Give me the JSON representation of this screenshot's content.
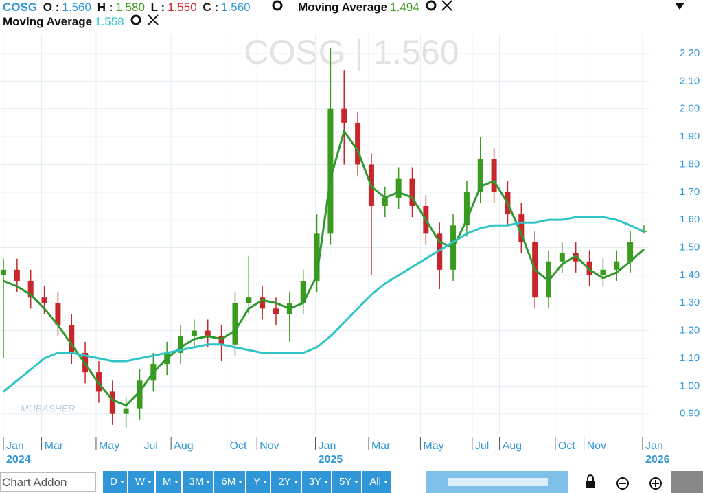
{
  "header": {
    "symbol": "COSG",
    "o_label": "O :",
    "open": "1.560",
    "h_label": "H :",
    "high": "1.580",
    "l_label": "L :",
    "low": "1.550",
    "c_label": "C :",
    "close": "1.560",
    "indicators": [
      {
        "name": "Moving Average",
        "value": "1.494"
      },
      {
        "name": "Moving Average",
        "value": "1.558"
      }
    ]
  },
  "watermark": "COSG | 1.560",
  "logo": "MUBASHER",
  "chart_data": {
    "type": "candlestick",
    "open": [
      1.4,
      1.42,
      1.38,
      1.32,
      1.3,
      1.22,
      1.12,
      1.05,
      0.98,
      0.9,
      0.92,
      1.02,
      1.08,
      1.12,
      1.18,
      1.2,
      1.18,
      1.15,
      1.3,
      1.32,
      1.28,
      1.26,
      1.3,
      1.38,
      1.55,
      2.0,
      1.95,
      1.8,
      1.65,
      1.68,
      1.75,
      1.65,
      1.55,
      1.42,
      1.58,
      1.7,
      1.82,
      1.7,
      1.62,
      1.52,
      1.32,
      1.45,
      1.48,
      1.45,
      1.4,
      1.42,
      1.45,
      1.56
    ],
    "high": [
      1.46,
      1.46,
      1.42,
      1.36,
      1.34,
      1.26,
      1.16,
      1.09,
      1.02,
      0.96,
      1.06,
      1.12,
      1.16,
      1.22,
      1.24,
      1.24,
      1.22,
      1.34,
      1.47,
      1.36,
      1.32,
      1.34,
      1.42,
      1.62,
      2.22,
      2.14,
      1.99,
      1.84,
      1.72,
      1.79,
      1.79,
      1.69,
      1.59,
      1.62,
      1.74,
      1.9,
      1.86,
      1.74,
      1.66,
      1.56,
      1.49,
      1.52,
      1.52,
      1.49,
      1.46,
      1.49,
      1.56,
      1.58
    ],
    "low": [
      1.1,
      1.34,
      1.28,
      1.26,
      1.18,
      1.08,
      1.01,
      0.94,
      0.86,
      0.85,
      0.88,
      0.98,
      1.04,
      1.08,
      1.14,
      1.14,
      1.09,
      1.11,
      1.26,
      1.24,
      1.22,
      1.16,
      1.26,
      1.34,
      1.51,
      1.8,
      1.76,
      1.4,
      1.61,
      1.64,
      1.61,
      1.51,
      1.35,
      1.38,
      1.54,
      1.66,
      1.66,
      1.58,
      1.48,
      1.28,
      1.28,
      1.41,
      1.41,
      1.36,
      1.36,
      1.38,
      1.41,
      1.55
    ],
    "close": [
      1.42,
      1.38,
      1.32,
      1.3,
      1.22,
      1.12,
      1.05,
      0.98,
      0.9,
      0.92,
      1.02,
      1.08,
      1.12,
      1.18,
      1.2,
      1.18,
      1.15,
      1.3,
      1.32,
      1.28,
      1.26,
      1.3,
      1.38,
      1.55,
      2.0,
      1.95,
      1.8,
      1.65,
      1.68,
      1.75,
      1.65,
      1.55,
      1.42,
      1.58,
      1.7,
      1.82,
      1.7,
      1.62,
      1.52,
      1.32,
      1.45,
      1.48,
      1.45,
      1.4,
      1.42,
      1.45,
      1.52,
      1.56
    ],
    "up_color": "#3a9b1e",
    "down_color": "#c9262b",
    "series": [
      {
        "name": "Moving Average",
        "color": "#2e9a2e",
        "values": [
          1.38,
          1.36,
          1.33,
          1.28,
          1.22,
          1.15,
          1.08,
          1.01,
          0.95,
          0.93,
          0.98,
          1.05,
          1.1,
          1.14,
          1.17,
          1.18,
          1.17,
          1.2,
          1.28,
          1.31,
          1.3,
          1.28,
          1.3,
          1.4,
          1.75,
          1.92,
          1.85,
          1.72,
          1.68,
          1.7,
          1.68,
          1.6,
          1.52,
          1.5,
          1.6,
          1.72,
          1.74,
          1.66,
          1.55,
          1.42,
          1.38,
          1.44,
          1.47,
          1.42,
          1.39,
          1.41,
          1.45,
          1.494
        ]
      },
      {
        "name": "Moving Average",
        "color": "#2ec4c8",
        "values": [
          0.98,
          1.02,
          1.06,
          1.1,
          1.12,
          1.12,
          1.11,
          1.1,
          1.09,
          1.09,
          1.1,
          1.11,
          1.12,
          1.13,
          1.14,
          1.15,
          1.15,
          1.14,
          1.13,
          1.12,
          1.12,
          1.12,
          1.12,
          1.14,
          1.18,
          1.23,
          1.28,
          1.33,
          1.37,
          1.4,
          1.43,
          1.46,
          1.49,
          1.52,
          1.55,
          1.57,
          1.58,
          1.58,
          1.59,
          1.59,
          1.6,
          1.6,
          1.61,
          1.61,
          1.61,
          1.6,
          1.58,
          1.558
        ]
      }
    ],
    "ylim": [
      0.8324,
      2.2
    ],
    "yticks": [
      {
        "value": 0.9,
        "label": "0.90"
      },
      {
        "value": 1.0,
        "label": "1.00"
      },
      {
        "value": 1.1,
        "label": "1.10"
      },
      {
        "value": 1.2,
        "label": "1.20"
      },
      {
        "value": 1.3,
        "label": "1.30"
      },
      {
        "value": 1.4,
        "label": "1.40"
      },
      {
        "value": 1.5,
        "label": "1.50"
      },
      {
        "value": 1.6,
        "label": "1.60"
      },
      {
        "value": 1.7,
        "label": "1.70"
      },
      {
        "value": 1.8,
        "label": "1.80"
      },
      {
        "value": 1.9,
        "label": "1.90"
      },
      {
        "value": 2.0,
        "label": "2.00"
      },
      {
        "value": 2.1,
        "label": "2.10"
      },
      {
        "value": 2.2,
        "label": "2.20"
      }
    ],
    "xticks": [
      {
        "value": 0,
        "label": "Jan"
      },
      {
        "value": 2.8,
        "label": "Mar"
      },
      {
        "value": 6.8,
        "label": "May"
      },
      {
        "value": 10.1,
        "label": "Jul"
      },
      {
        "value": 12.3,
        "label": "Aug"
      },
      {
        "value": 16.4,
        "label": "Oct"
      },
      {
        "value": 18.6,
        "label": "Nov"
      },
      {
        "value": 22.9,
        "label": "Jan"
      },
      {
        "value": 26.8,
        "label": "Mar"
      },
      {
        "value": 30.6,
        "label": "May"
      },
      {
        "value": 34.4,
        "label": "Jul"
      },
      {
        "value": 36.4,
        "label": "Aug"
      },
      {
        "value": 40.5,
        "label": "Oct"
      },
      {
        "value": 42.6,
        "label": "Nov"
      },
      {
        "value": 46.9,
        "label": "Jan"
      }
    ],
    "year_ticks": [
      {
        "value": 0,
        "label": "2024"
      },
      {
        "value": 22.9,
        "label": "2025"
      },
      {
        "value": 46.9,
        "label": "2026"
      }
    ],
    "grid": true
  },
  "toolbar": {
    "search": "Chart Addon",
    "periods": [
      "D",
      "W",
      "M",
      "3M",
      "6M",
      "Y",
      "2Y",
      "3Y",
      "5Y",
      "All"
    ]
  }
}
